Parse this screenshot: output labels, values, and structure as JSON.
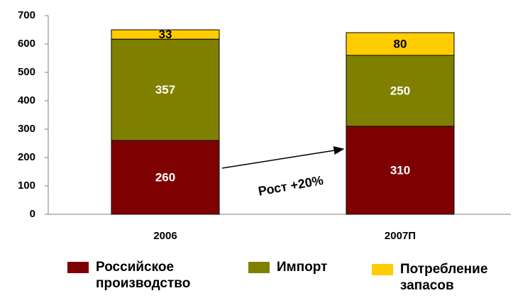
{
  "chart_data": {
    "type": "stacked_bar",
    "categories": [
      "2006",
      "2007П"
    ],
    "series": [
      {
        "name": "Российское производство",
        "color": "#7f0000",
        "label_color": "#ffffff",
        "values": [
          260,
          310
        ]
      },
      {
        "name": "Импорт",
        "color": "#808000",
        "label_color": "#ffffff",
        "values": [
          357,
          250
        ]
      },
      {
        "name": "Потребление запасов",
        "color": "#ffcc00",
        "label_color": "#000000",
        "values": [
          33,
          80
        ]
      }
    ],
    "ylim": [
      0,
      700
    ],
    "yticks": [
      0,
      100,
      200,
      300,
      400,
      500,
      600,
      700
    ],
    "annotation": "Рост +20%"
  }
}
